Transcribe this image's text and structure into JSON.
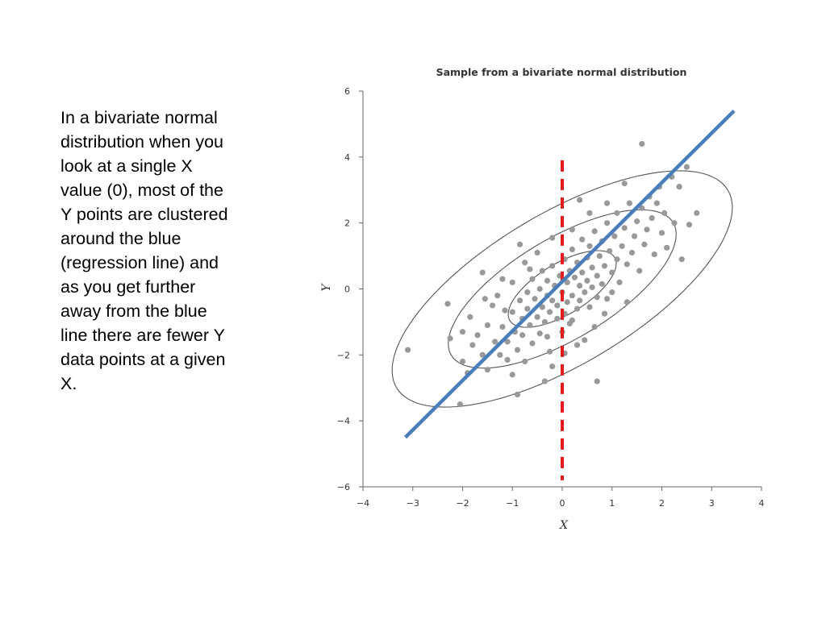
{
  "slide": {
    "caption_lines": [
      "In a bivariate normal",
      "distribution when you",
      "look at a single X",
      "value (0), most of the",
      "Y points are clustered",
      "around the blue",
      "(regression line) and",
      "as you get further",
      "away from the blue",
      "line there are fewer Y",
      "data points at a given",
      "X."
    ]
  },
  "chart_data": {
    "type": "scatter",
    "title": "Sample from a bivariate normal distribution",
    "xlabel": "X",
    "ylabel": "Y",
    "xlim": [
      -4,
      4
    ],
    "ylim": [
      -6,
      6
    ],
    "xticks": [
      -4,
      -3,
      -2,
      -1,
      0,
      1,
      2,
      3,
      4
    ],
    "yticks": [
      -6,
      -4,
      -2,
      0,
      2,
      4,
      6
    ],
    "xtick_labels": [
      "−4",
      "−3",
      "−2",
      "−1",
      "0",
      "1",
      "2",
      "3",
      "4"
    ],
    "ytick_labels": [
      "−6",
      "−4",
      "−2",
      "0",
      "2",
      "4",
      "6"
    ],
    "grid": false,
    "colors": {
      "points": "#999999",
      "regression_line": "#4a7ebb",
      "vertical_line": "#e41a1c",
      "ellipses": "#555555",
      "axes": "#666666"
    },
    "regression_line": {
      "x": [
        -3.15,
        3.45
      ],
      "y": [
        -4.5,
        5.4
      ]
    },
    "vertical_line": {
      "x": 0,
      "y_from": -5.8,
      "y_to": 3.9
    },
    "ellipses": [
      {
        "center": [
          0,
          0
        ],
        "semi_major": 1.45,
        "semi_minor": 0.65,
        "angle_deg": 48
      },
      {
        "center": [
          0,
          0
        ],
        "semi_major": 3.05,
        "semi_minor": 1.3,
        "angle_deg": 47
      },
      {
        "center": [
          0,
          0
        ],
        "semi_major": 4.55,
        "semi_minor": 1.95,
        "angle_deg": 47
      }
    ],
    "points": [
      [
        -3.1,
        -1.85
      ],
      [
        -2.3,
        -0.45
      ],
      [
        -2.0,
        -2.2
      ],
      [
        -2.05,
        -3.5
      ],
      [
        -1.9,
        -2.55
      ],
      [
        -1.8,
        -1.7
      ],
      [
        -1.7,
        -1.4
      ],
      [
        -1.6,
        -2.0
      ],
      [
        -1.5,
        -1.1
      ],
      [
        -1.5,
        -2.45
      ],
      [
        -1.4,
        -0.5
      ],
      [
        -1.35,
        -1.6
      ],
      [
        -1.3,
        -0.2
      ],
      [
        -1.25,
        -2.0
      ],
      [
        -1.2,
        -1.15
      ],
      [
        -1.15,
        -0.65
      ],
      [
        -1.1,
        -1.6
      ],
      [
        -1.1,
        -2.15
      ],
      [
        -1.0,
        -0.7
      ],
      [
        -1.0,
        0.2
      ],
      [
        -0.95,
        -1.3
      ],
      [
        -0.9,
        -1.85
      ],
      [
        -0.9,
        -3.2
      ],
      [
        -0.85,
        -0.35
      ],
      [
        -0.8,
        -0.9
      ],
      [
        -0.8,
        -1.4
      ],
      [
        -0.75,
        0.8
      ],
      [
        -0.7,
        -0.1
      ],
      [
        -0.7,
        -0.6
      ],
      [
        -0.65,
        -1.1
      ],
      [
        -0.6,
        -1.65
      ],
      [
        -0.6,
        0.3
      ],
      [
        -0.55,
        -0.3
      ],
      [
        -0.5,
        -0.85
      ],
      [
        -0.5,
        1.1
      ],
      [
        -0.45,
        -1.35
      ],
      [
        -0.45,
        0.0
      ],
      [
        -0.4,
        -0.55
      ],
      [
        -0.4,
        0.55
      ],
      [
        -0.35,
        -1.0
      ],
      [
        -0.3,
        -0.2
      ],
      [
        -0.3,
        0.25
      ],
      [
        -0.25,
        -0.7
      ],
      [
        -0.25,
        -1.9
      ],
      [
        -0.2,
        0.7
      ],
      [
        -0.2,
        -0.35
      ],
      [
        -0.15,
        0.1
      ],
      [
        -0.1,
        -0.9
      ],
      [
        -0.1,
        -0.5
      ],
      [
        -0.05,
        0.4
      ],
      [
        0.0,
        -0.1
      ],
      [
        0.0,
        -1.3
      ],
      [
        0.05,
        0.9
      ],
      [
        0.05,
        -0.75
      ],
      [
        0.1,
        0.2
      ],
      [
        0.1,
        -0.4
      ],
      [
        0.15,
        0.55
      ],
      [
        0.15,
        -1.05
      ],
      [
        0.2,
        1.2
      ],
      [
        0.2,
        -0.2
      ],
      [
        0.25,
        0.35
      ],
      [
        0.3,
        -0.6
      ],
      [
        0.3,
        0.8
      ],
      [
        0.35,
        0.1
      ],
      [
        0.35,
        -0.35
      ],
      [
        0.4,
        1.5
      ],
      [
        0.4,
        0.5
      ],
      [
        0.45,
        -0.1
      ],
      [
        0.5,
        0.95
      ],
      [
        0.5,
        0.25
      ],
      [
        0.55,
        -0.55
      ],
      [
        0.55,
        1.3
      ],
      [
        0.6,
        0.65
      ],
      [
        0.6,
        0.05
      ],
      [
        0.65,
        1.75
      ],
      [
        0.7,
        0.4
      ],
      [
        0.7,
        -0.25
      ],
      [
        0.75,
        1.0
      ],
      [
        0.8,
        0.15
      ],
      [
        0.8,
        1.45
      ],
      [
        0.85,
        0.7
      ],
      [
        0.9,
        -0.3
      ],
      [
        0.9,
        2.0
      ],
      [
        0.95,
        1.15
      ],
      [
        1.0,
        0.5
      ],
      [
        1.05,
        1.6
      ],
      [
        1.1,
        0.9
      ],
      [
        1.1,
        2.3
      ],
      [
        1.15,
        0.2
      ],
      [
        1.2,
        1.3
      ],
      [
        1.25,
        1.85
      ],
      [
        1.3,
        0.75
      ],
      [
        1.35,
        2.6
      ],
      [
        1.4,
        1.1
      ],
      [
        1.45,
        1.6
      ],
      [
        1.5,
        2.05
      ],
      [
        1.55,
        0.55
      ],
      [
        1.6,
        2.45
      ],
      [
        1.6,
        4.4
      ],
      [
        1.65,
        1.35
      ],
      [
        1.7,
        1.8
      ],
      [
        1.75,
        2.8
      ],
      [
        1.8,
        2.15
      ],
      [
        1.85,
        1.05
      ],
      [
        1.9,
        2.6
      ],
      [
        1.95,
        3.1
      ],
      [
        2.0,
        1.7
      ],
      [
        2.05,
        2.3
      ],
      [
        2.1,
        1.25
      ],
      [
        2.2,
        3.4
      ],
      [
        2.25,
        2.0
      ],
      [
        2.35,
        3.1
      ],
      [
        2.4,
        0.9
      ],
      [
        2.55,
        1.95
      ],
      [
        2.7,
        2.3
      ],
      [
        2.5,
        3.7
      ],
      [
        0.7,
        -2.8
      ],
      [
        -0.35,
        -2.8
      ],
      [
        0.3,
        -1.7
      ],
      [
        -1.6,
        0.5
      ],
      [
        -2.0,
        -1.3
      ],
      [
        -1.55,
        -0.3
      ],
      [
        -1.2,
        0.3
      ],
      [
        -0.85,
        1.35
      ],
      [
        -0.65,
        0.6
      ],
      [
        -0.2,
        1.55
      ],
      [
        0.2,
        1.8
      ],
      [
        0.35,
        2.7
      ],
      [
        0.55,
        2.3
      ],
      [
        0.9,
        2.6
      ],
      [
        1.25,
        3.2
      ],
      [
        -0.3,
        -1.45
      ],
      [
        0.2,
        -0.95
      ],
      [
        0.45,
        -1.55
      ],
      [
        0.65,
        -1.15
      ],
      [
        0.85,
        -0.75
      ],
      [
        1.0,
        -0.1
      ],
      [
        1.3,
        -0.4
      ],
      [
        -1.85,
        -0.85
      ],
      [
        -2.25,
        -1.5
      ],
      [
        -1.0,
        -2.6
      ],
      [
        -0.75,
        -2.2
      ],
      [
        -0.2,
        -2.35
      ],
      [
        0.05,
        -1.95
      ]
    ]
  }
}
